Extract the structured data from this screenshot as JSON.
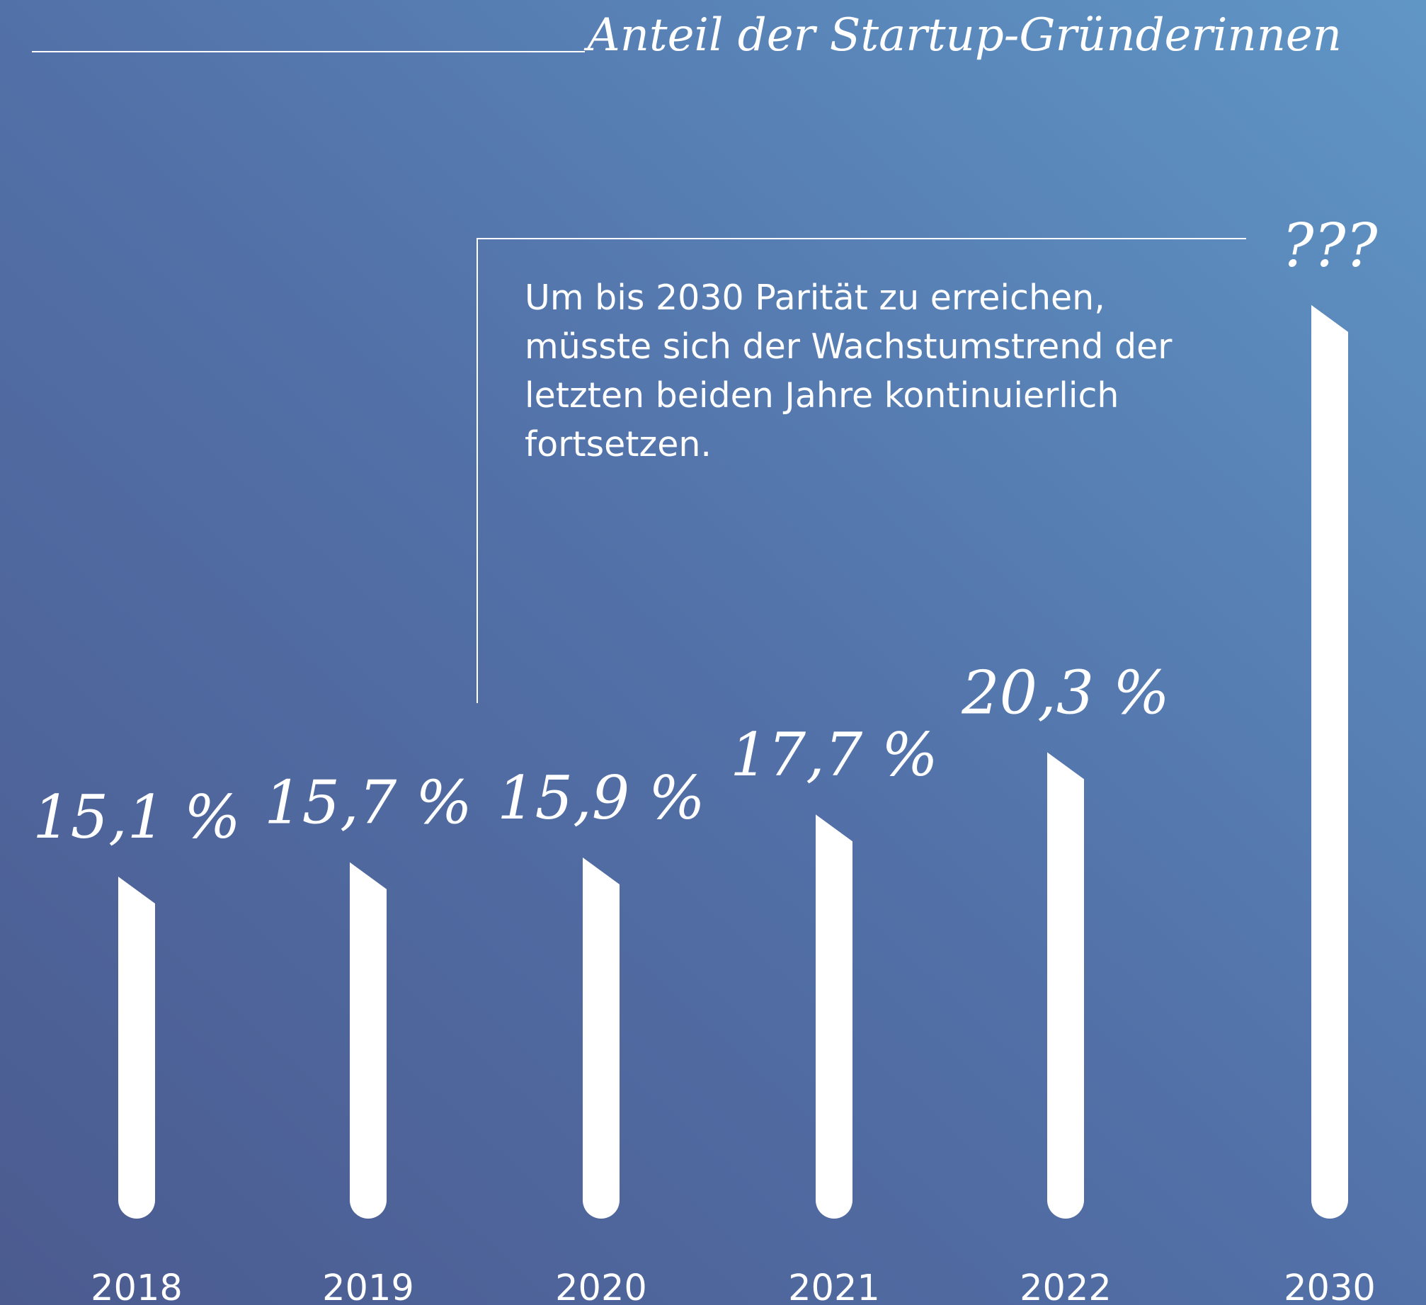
{
  "chart_data": {
    "type": "bar",
    "title": "Anteil der Startup-Gründerinnen",
    "categories": [
      "2018",
      "2019",
      "2020",
      "2021",
      "2022",
      "2030"
    ],
    "values": [
      15.1,
      15.7,
      15.9,
      17.7,
      20.3,
      39
    ],
    "value_labels": [
      "15,1 %",
      "15,7 %",
      "15,9 %",
      "17,7 %",
      "20,3 %",
      "???"
    ],
    "color": "#ffffff",
    "ylim": [
      0.8,
      40
    ],
    "annotation": [
      "Um bis 2030 Parität zu erreichen,",
      "müsste sich der Wachstumstrend der",
      "letzten beiden Jahre kontinuierlich",
      "fortsetzen."
    ]
  }
}
